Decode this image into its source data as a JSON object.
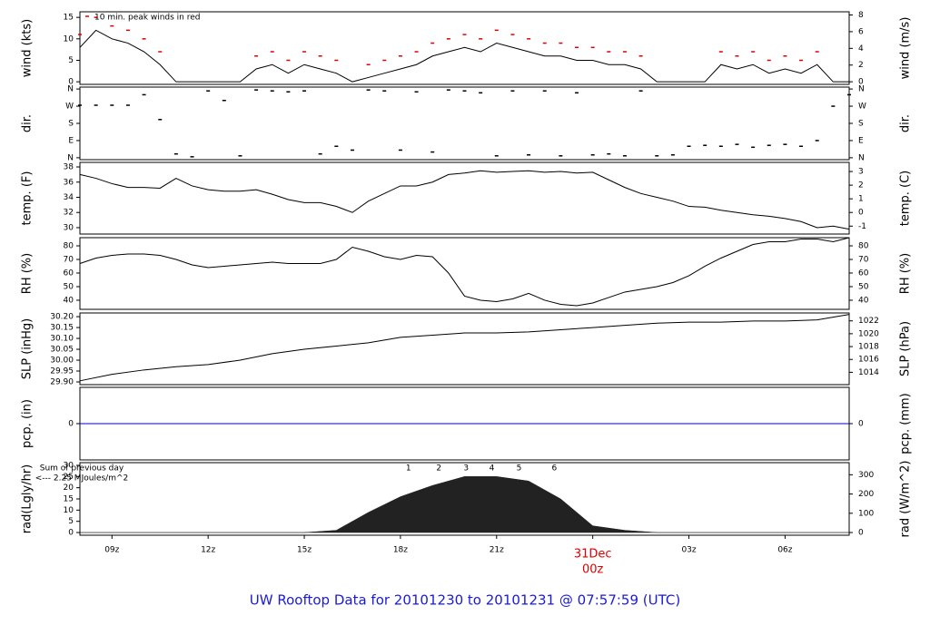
{
  "caption": "UW Rooftop Data for 20101230  to  20101231 @ 07:57:59  (UTC)",
  "chart_data": [
    {
      "type": "line",
      "ylabel": "wind (kts)",
      "y2label": "wind (m/s)",
      "annotation": "10 min. peak winds in red",
      "annotation_color": "#e00000",
      "x": [
        8,
        8.5,
        9,
        9.5,
        10,
        10.5,
        11,
        11.5,
        12,
        12.5,
        13,
        13.5,
        14,
        14.5,
        15,
        15.5,
        16,
        16.5,
        17,
        17.5,
        18,
        18.5,
        19,
        19.5,
        20,
        20.5,
        21,
        21.5,
        22,
        22.5,
        23,
        23.5,
        24,
        24.5,
        25,
        25.5,
        26,
        26.5,
        27,
        27.5,
        28,
        28.5,
        29,
        29.5,
        30,
        30.5,
        31,
        31.5,
        32
      ],
      "series": [
        {
          "color": "#000000",
          "values": [
            8,
            12,
            10,
            9,
            7,
            4,
            0,
            0,
            0,
            0,
            0,
            3,
            4,
            2,
            4,
            3,
            2,
            0,
            1,
            2,
            3,
            4,
            6,
            7,
            8,
            7,
            9,
            8,
            7,
            6,
            6,
            5,
            5,
            4,
            4,
            3,
            0,
            0,
            0,
            0,
            4,
            3,
            4,
            2,
            3,
            2,
            4,
            0,
            0
          ]
        },
        {
          "color": "#e00000",
          "marker": "dash",
          "values": [
            11,
            15,
            13,
            12,
            10,
            7,
            null,
            null,
            null,
            null,
            null,
            6,
            7,
            5,
            7,
            6,
            5,
            null,
            4,
            5,
            6,
            7,
            9,
            10,
            11,
            10,
            12,
            11,
            10,
            9,
            9,
            8,
            8,
            7,
            7,
            6,
            null,
            null,
            null,
            null,
            7,
            6,
            7,
            5,
            6,
            5,
            7,
            null,
            null
          ]
        }
      ],
      "xlim": [
        8,
        32
      ],
      "ylim": [
        -0.6,
        16.3
      ],
      "yticks": [
        0,
        5,
        10,
        15
      ],
      "y2lim": [
        -0.31,
        8.38
      ],
      "y2ticks": [
        0,
        2,
        4,
        6,
        8
      ]
    },
    {
      "type": "scatter",
      "ylabel": "dir.",
      "y2label": "dir.",
      "color": "#000000",
      "x": [
        8,
        8.5,
        9,
        9.5,
        10,
        10.5,
        11,
        11.5,
        12,
        12.5,
        13,
        13.5,
        14,
        14.5,
        15,
        15.5,
        16,
        16.5,
        17,
        17.5,
        18,
        18.5,
        19,
        19.5,
        20,
        20.5,
        21,
        21.5,
        22,
        22.5,
        23,
        23.5,
        24,
        24.5,
        25,
        25.5,
        26,
        26.5,
        27,
        27.5,
        28,
        28.5,
        29,
        29.5,
        30,
        30.5,
        31,
        31.5,
        32
      ],
      "values": [
        275,
        275,
        275,
        275,
        330,
        200,
        20,
        5,
        350,
        300,
        10,
        355,
        350,
        345,
        350,
        20,
        60,
        40,
        355,
        350,
        40,
        345,
        30,
        355,
        350,
        340,
        10,
        350,
        15,
        350,
        10,
        340,
        15,
        20,
        10,
        350,
        10,
        15,
        60,
        65,
        60,
        70,
        55,
        65,
        70,
        60,
        90,
        270,
        330
      ],
      "xlim": [
        8,
        32
      ],
      "ylim": [
        -10,
        370
      ],
      "yticks": [
        {
          "value": 0,
          "label": "N"
        },
        {
          "value": 90,
          "label": "E"
        },
        {
          "value": 180,
          "label": "S"
        },
        {
          "value": 270,
          "label": "W"
        },
        {
          "value": 360,
          "label": "N"
        }
      ],
      "y2lim": [
        -10,
        370
      ],
      "y2ticks": [
        {
          "value": 0,
          "label": "N"
        },
        {
          "value": 90,
          "label": "E"
        },
        {
          "value": 180,
          "label": "S"
        },
        {
          "value": 270,
          "label": "W"
        },
        {
          "value": 360,
          "label": "N"
        }
      ]
    },
    {
      "type": "line",
      "ylabel": "temp. (F)",
      "y2label": "temp. (C)",
      "color": "#000000",
      "x": [
        8,
        8.5,
        9,
        9.5,
        10,
        10.5,
        11,
        11.5,
        12,
        12.5,
        13,
        13.5,
        14,
        14.5,
        15,
        15.5,
        16,
        16.5,
        17,
        17.5,
        18,
        18.5,
        19,
        19.5,
        20,
        20.5,
        21,
        21.5,
        22,
        22.5,
        23,
        23.5,
        24,
        24.5,
        25,
        25.5,
        26,
        26.5,
        27,
        27.5,
        28,
        28.5,
        29,
        29.5,
        30,
        30.5,
        31,
        31.5,
        32
      ],
      "values": [
        37,
        36.5,
        35.8,
        35.3,
        35.3,
        35.2,
        36.5,
        35.5,
        35,
        34.8,
        34.8,
        35,
        34.4,
        33.7,
        33.3,
        33.3,
        32.8,
        32,
        33.5,
        34.5,
        35.5,
        35.5,
        36,
        37,
        37.2,
        37.5,
        37.3,
        37.4,
        37.5,
        37.3,
        37.4,
        37.2,
        37.3,
        36.3,
        35.3,
        34.5,
        34,
        33.5,
        32.8,
        32.7,
        32.3,
        32,
        31.7,
        31.5,
        31.2,
        30.8,
        30,
        30.2,
        29.8
      ],
      "xlim": [
        8,
        32
      ],
      "ylim": [
        29.16,
        38.6
      ],
      "yticks": [
        30,
        32,
        34,
        36,
        38
      ],
      "y2lim": [
        -1.58,
        3.67
      ],
      "y2ticks": [
        -1,
        0,
        1,
        2,
        3
      ]
    },
    {
      "type": "line",
      "ylabel": "RH (%)",
      "y2label": "RH (%)",
      "color": "#000000",
      "x": [
        8,
        8.5,
        9,
        9.5,
        10,
        10.5,
        11,
        11.5,
        12,
        12.5,
        13,
        13.5,
        14,
        14.5,
        15,
        15.5,
        16,
        16.5,
        17,
        17.5,
        18,
        18.5,
        19,
        19.5,
        20,
        20.5,
        21,
        21.5,
        22,
        22.5,
        23,
        23.5,
        24,
        24.5,
        25,
        25.5,
        26,
        26.5,
        27,
        27.5,
        28,
        28.5,
        29,
        29.5,
        30,
        30.5,
        31,
        31.5,
        32
      ],
      "values": [
        67,
        71,
        73,
        74,
        74,
        73,
        70,
        66,
        64,
        65,
        66,
        67,
        68,
        67,
        67,
        67,
        70,
        79,
        76,
        72,
        70,
        73,
        72,
        60,
        43,
        40,
        39,
        41,
        45,
        40,
        37,
        36,
        38,
        42,
        46,
        48,
        50,
        53,
        58,
        65,
        71,
        76,
        81,
        83,
        83,
        85,
        85,
        83,
        86
      ],
      "xlim": [
        8,
        32
      ],
      "ylim": [
        33.3,
        86
      ],
      "yticks": [
        40,
        50,
        60,
        70,
        80
      ],
      "y2lim": [
        33.3,
        86
      ],
      "y2ticks": [
        40,
        50,
        60,
        70,
        80
      ]
    },
    {
      "type": "line",
      "ylabel": "SLP (inHg)",
      "y2label": "SLP (hPa)",
      "color": "#000000",
      "x": [
        8,
        9,
        10,
        11,
        12,
        13,
        14,
        15,
        16,
        17,
        18,
        19,
        20,
        21,
        22,
        23,
        24,
        25,
        26,
        27,
        28,
        29,
        30,
        31,
        32
      ],
      "values": [
        29.905,
        29.935,
        29.955,
        29.97,
        29.98,
        30.0,
        30.03,
        30.05,
        30.065,
        30.08,
        30.105,
        30.115,
        30.125,
        30.125,
        30.13,
        30.14,
        30.15,
        30.16,
        30.17,
        30.175,
        30.175,
        30.18,
        30.18,
        30.185,
        30.21
      ],
      "xlim": [
        8,
        32
      ],
      "ylim": [
        29.8875,
        30.217
      ],
      "yticks": [
        {
          "value": 29.9,
          "label": "29.90"
        },
        29.95,
        {
          "value": 30.0,
          "label": "30.00"
        },
        30.05,
        {
          "value": 30.1,
          "label": "30.10"
        },
        30.15,
        {
          "value": 30.2,
          "label": "30.20"
        }
      ],
      "y2lim": [
        1012.08,
        1023.23
      ],
      "y2ticks": [
        1014,
        1016,
        1018,
        1020,
        1022
      ]
    },
    {
      "type": "line",
      "ylabel": "pcp. (in)",
      "y2label": "pcp. (mm)",
      "color": "#0000cc",
      "x": [
        8,
        9,
        10,
        11,
        12,
        13,
        14,
        15,
        16,
        17,
        18,
        19,
        20,
        21,
        22,
        23,
        24,
        25,
        26,
        27,
        28,
        29,
        30,
        31,
        32
      ],
      "values": [
        0,
        0,
        0,
        0,
        0,
        0,
        0,
        0,
        0,
        0,
        0,
        0,
        0,
        0,
        0,
        0,
        0,
        0,
        0,
        0,
        0,
        0,
        0,
        0,
        0
      ],
      "xlim": [
        8,
        32
      ],
      "ylim": [
        -1,
        1
      ],
      "yticks": [
        0
      ],
      "y2lim": [
        -25.4,
        25.4
      ],
      "y2ticks": [
        0
      ]
    },
    {
      "type": "area",
      "ylabel": "rad(Lgly/hr)",
      "y2label": "rad (W/m^2)",
      "color": "#222222",
      "notes": [
        "Sum of previous day",
        "<--- 2.25 MJoules/m^2"
      ],
      "notes_color": "#9900cc",
      "hour_labels": [
        "1",
        "2",
        "3",
        "4",
        "5",
        "6"
      ],
      "hour_label_x": [
        18.25,
        19.2,
        20.05,
        20.85,
        21.7,
        22.8
      ],
      "x": [
        8,
        9,
        10,
        11,
        12,
        13,
        14,
        15,
        16,
        17,
        18,
        19,
        20,
        21,
        22,
        23,
        24,
        25,
        26,
        27,
        28,
        29,
        30,
        31,
        32
      ],
      "values": [
        0,
        0,
        0,
        0,
        0,
        0,
        0,
        0,
        1,
        9,
        16,
        21,
        25,
        25,
        23,
        15,
        3,
        1,
        0,
        0,
        0,
        0,
        0,
        0,
        0
      ],
      "xlim": [
        8,
        32
      ],
      "ylim": [
        -1.2,
        31.2
      ],
      "yticks": [
        0,
        5,
        10,
        15,
        20,
        25,
        30
      ],
      "y2lim": [
        -13.96,
        362.9
      ],
      "y2ticks": [
        0,
        100,
        200,
        300
      ],
      "xticks": [
        {
          "value": 9,
          "label": "09z"
        },
        {
          "value": 12,
          "label": "12z"
        },
        {
          "value": 15,
          "label": "15z"
        },
        {
          "value": 18,
          "label": "18z"
        },
        {
          "value": 21,
          "label": "21z"
        },
        {
          "value": 24,
          "label": "00z"
        },
        {
          "value": 27,
          "label": "03z"
        },
        {
          "value": 30,
          "label": "06z"
        }
      ],
      "date_marker": {
        "value": 24,
        "label": "31Dec"
      },
      "date_marker_color": "#e00000"
    }
  ]
}
